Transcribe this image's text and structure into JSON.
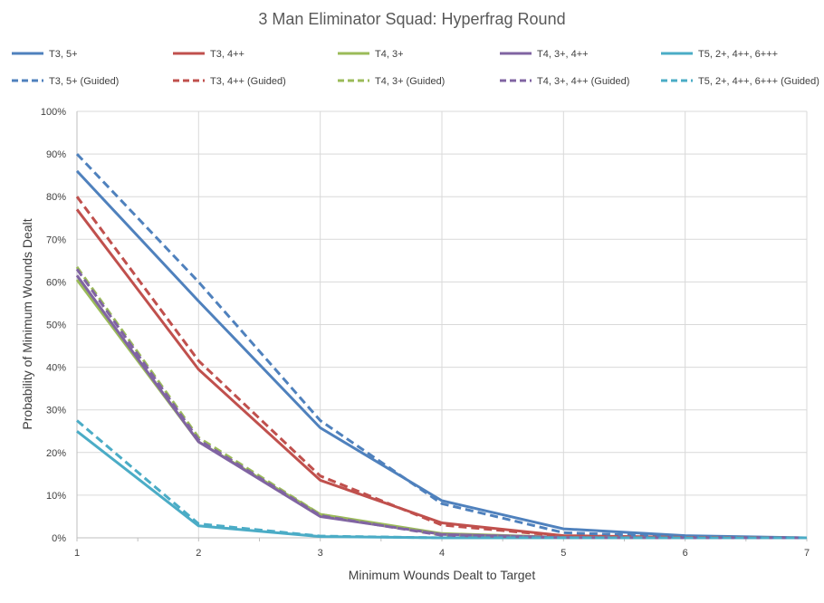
{
  "chart_data": {
    "type": "line",
    "title": "3 Man Eliminator Squad: Hyperfrag Round",
    "xlabel": "Minimum Wounds Dealt  to Target",
    "ylabel": "Probability of Minimum Wounds Dealt",
    "x": [
      1,
      2,
      3,
      4,
      5,
      6,
      7
    ],
    "xlim": [
      1,
      7
    ],
    "ylim": [
      0,
      100
    ],
    "y_ticks": [
      "0%",
      "10%",
      "20%",
      "30%",
      "40%",
      "50%",
      "60%",
      "70%",
      "80%",
      "90%",
      "100%"
    ],
    "x_ticks": [
      "1",
      "2",
      "3",
      "4",
      "5",
      "6",
      "7"
    ],
    "grid": true,
    "legend_position": "top",
    "series": [
      {
        "name": "T3, 5+",
        "color": "#4F81BD",
        "dash": false,
        "values": [
          86,
          55.5,
          25.8,
          8.7,
          2.1,
          0.5,
          0
        ]
      },
      {
        "name": "T3, 4++",
        "color": "#C0504D",
        "dash": false,
        "values": [
          77,
          39.5,
          13.5,
          3.5,
          0.5,
          0.1,
          0
        ]
      },
      {
        "name": "T4, 3+",
        "color": "#9BBB59",
        "dash": false,
        "values": [
          60.5,
          22.5,
          5.5,
          1.0,
          0.1,
          0,
          0
        ]
      },
      {
        "name": "T4, 3+, 4++",
        "color": "#8064A2",
        "dash": false,
        "values": [
          61.5,
          22.5,
          5.0,
          0.8,
          0.1,
          0,
          0
        ]
      },
      {
        "name": "T5, 2+, 4++, 6+++",
        "color": "#4BACC6",
        "dash": false,
        "values": [
          25,
          2.8,
          0.3,
          0,
          0,
          0,
          0
        ]
      },
      {
        "name": "T3, 5+ (Guided)",
        "color": "#4F81BD",
        "dash": true,
        "values": [
          90,
          60,
          27.5,
          8,
          1.2,
          0.2,
          0
        ]
      },
      {
        "name": "T3, 4++ (Guided)",
        "color": "#C0504D",
        "dash": true,
        "values": [
          80,
          41.5,
          14.5,
          3.0,
          0.4,
          0.1,
          0
        ]
      },
      {
        "name": "T4, 3+ (Guided)",
        "color": "#9BBB59",
        "dash": true,
        "values": [
          63.5,
          23.5,
          5.5,
          0.6,
          0.05,
          0,
          0
        ]
      },
      {
        "name": "T4, 3+, 4++ (Guided)",
        "color": "#8064A2",
        "dash": true,
        "values": [
          63,
          23,
          5.2,
          0.6,
          0.05,
          0,
          0
        ]
      },
      {
        "name": "T5, 2+, 4++, 6+++ (Guided)",
        "color": "#4BACC6",
        "dash": true,
        "values": [
          27.5,
          3.3,
          0.4,
          0,
          0,
          0,
          0
        ]
      }
    ]
  }
}
